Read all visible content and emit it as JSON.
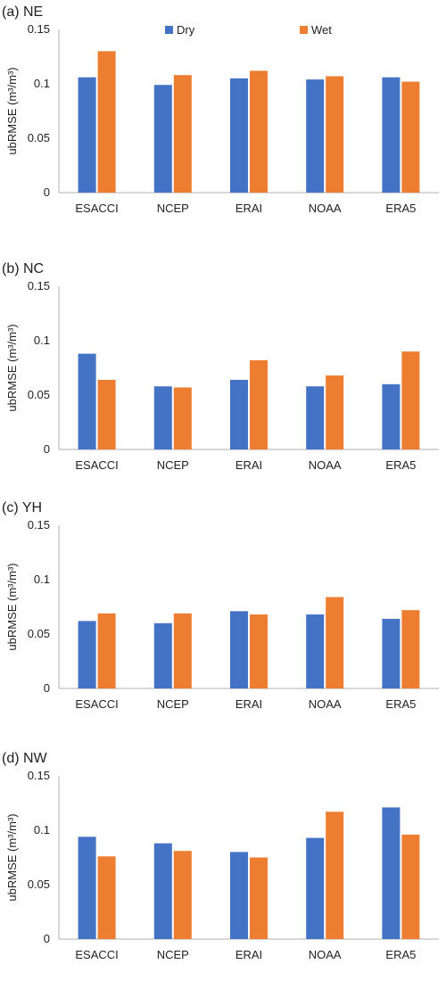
{
  "colors": {
    "dry": "#4472C4",
    "wet": "#ED7D31",
    "axis": "#b0b0b0"
  },
  "legend": {
    "placement": "top-center",
    "items": [
      "Dry",
      "Wet"
    ]
  },
  "chart_data": [
    {
      "type": "bar",
      "title": "(a) NE",
      "ylabel": "ubRMSE (m³/m³)",
      "ylim": [
        0,
        0.15
      ],
      "yticks": [
        "0",
        "0.05",
        "0.1",
        "0.15"
      ],
      "categories": [
        "ESACCI",
        "NCEP",
        "ERAI",
        "NOAA",
        "ERA5"
      ],
      "series": [
        {
          "name": "Dry",
          "values": [
            0.106,
            0.099,
            0.105,
            0.104,
            0.106
          ]
        },
        {
          "name": "Wet",
          "values": [
            0.13,
            0.108,
            0.112,
            0.107,
            0.102
          ]
        }
      ],
      "show_legend": true
    },
    {
      "type": "bar",
      "title": "(b) NC",
      "ylabel": "ubRMSE (m³/m³)",
      "ylim": [
        0,
        0.15
      ],
      "yticks": [
        "0",
        "0.05",
        "0.1",
        "0.15"
      ],
      "categories": [
        "ESACCI",
        "NCEP",
        "ERAI",
        "NOAA",
        "ERA5"
      ],
      "series": [
        {
          "name": "Dry",
          "values": [
            0.088,
            0.058,
            0.064,
            0.058,
            0.06
          ]
        },
        {
          "name": "Wet",
          "values": [
            0.064,
            0.057,
            0.082,
            0.068,
            0.09
          ]
        }
      ],
      "show_legend": false
    },
    {
      "type": "bar",
      "title": "(c) YH",
      "ylabel": "ubRMSE (m³/m³)",
      "ylim": [
        0,
        0.15
      ],
      "yticks": [
        "0",
        "0.05",
        "0.1",
        "0.15"
      ],
      "categories": [
        "ESACCI",
        "NCEP",
        "ERAI",
        "NOAA",
        "ERA5"
      ],
      "series": [
        {
          "name": "Dry",
          "values": [
            0.062,
            0.06,
            0.071,
            0.068,
            0.064
          ]
        },
        {
          "name": "Wet",
          "values": [
            0.069,
            0.069,
            0.068,
            0.084,
            0.072
          ]
        }
      ],
      "show_legend": false
    },
    {
      "type": "bar",
      "title": "(d) NW",
      "ylabel": "ubRMSE (m³/m³)",
      "ylim": [
        0,
        0.15
      ],
      "yticks": [
        "0",
        "0.05",
        "0.1",
        "0.15"
      ],
      "categories": [
        "ESACCI",
        "NCEP",
        "ERAI",
        "NOAA",
        "ERA5"
      ],
      "series": [
        {
          "name": "Dry",
          "values": [
            0.094,
            0.088,
            0.08,
            0.093,
            0.121
          ]
        },
        {
          "name": "Wet",
          "values": [
            0.076,
            0.081,
            0.075,
            0.117,
            0.096
          ]
        }
      ],
      "show_legend": false
    }
  ]
}
